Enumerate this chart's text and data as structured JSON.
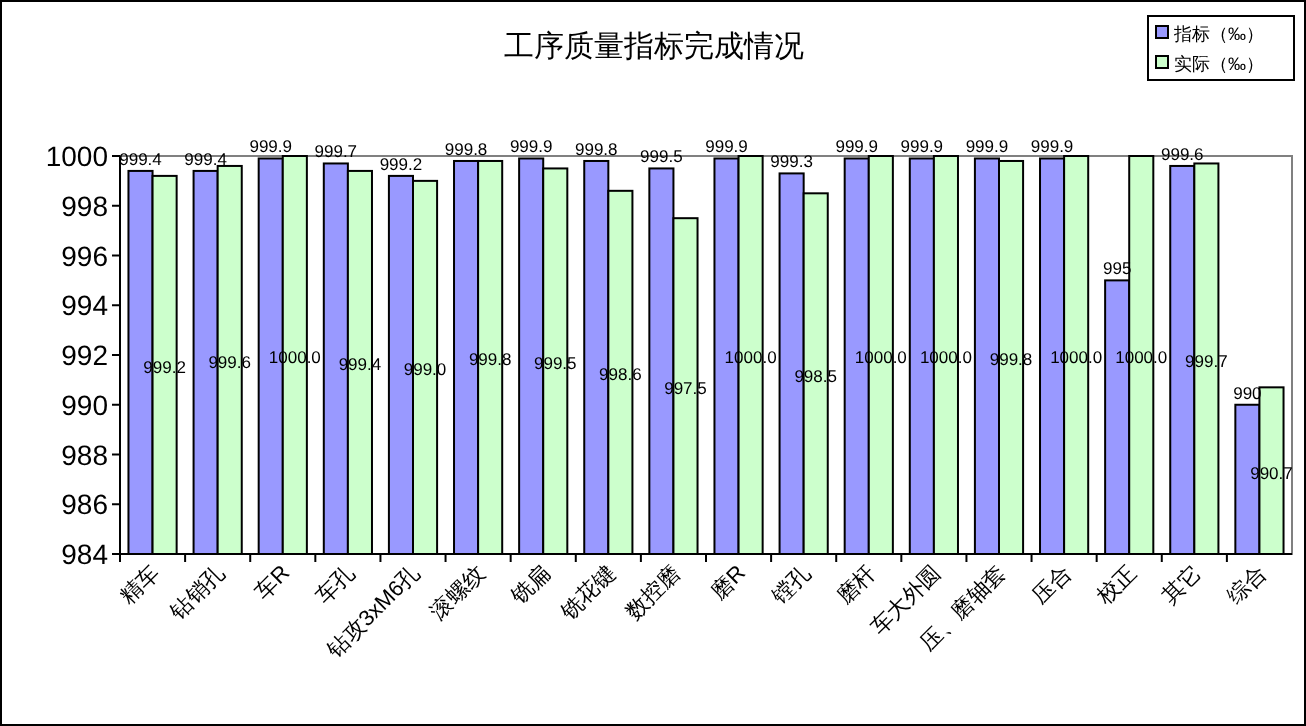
{
  "chart_data": {
    "type": "bar",
    "title": "工序质量指标完成情况",
    "categories": [
      "精车",
      "钻销孔",
      "车R",
      "车孔",
      "钻攻3xM6孔",
      "滚螺纹",
      "铣扁",
      "铣花键",
      "数控磨",
      "磨R",
      "镗孔",
      "磨杆",
      "车大外圆",
      "压、磨轴套",
      "压合",
      "校正",
      "其它",
      "综合"
    ],
    "series": [
      {
        "name": "指标（‰）",
        "color": "#9999ff",
        "values": [
          999.4,
          999.4,
          999.9,
          999.7,
          999.2,
          999.8,
          999.9,
          999.8,
          999.5,
          999.9,
          999.3,
          999.9,
          999.9,
          999.9,
          999.9,
          995,
          999.6,
          990
        ],
        "value_labels": [
          "999.4",
          "999.4",
          "999.9",
          "999.7",
          "999.2",
          "999.8",
          "999.9",
          "999.8",
          "999.5",
          "999.9",
          "999.3",
          "999.9",
          "999.9",
          "999.9",
          "999.9",
          "995",
          "999.6",
          "990"
        ]
      },
      {
        "name": "实际（‰）",
        "color": "#ccffcc",
        "values": [
          999.2,
          999.6,
          1000.0,
          999.4,
          999.0,
          999.8,
          999.5,
          998.6,
          997.5,
          1000.0,
          998.5,
          1000.0,
          1000.0,
          999.8,
          1000.0,
          1000.0,
          999.7,
          990.7
        ],
        "value_labels": [
          "999.2",
          "999.6",
          "1000.0",
          "999.4",
          "999.0",
          "999.8",
          "999.5",
          "998.6",
          "997.5",
          "1000.0",
          "998.5",
          "1000.0",
          "1000.0",
          "999.8",
          "1000.0",
          "1000.0",
          "999.7",
          "990.7"
        ]
      }
    ],
    "ylim": [
      984,
      1000
    ],
    "yticks": [
      984,
      986,
      988,
      990,
      992,
      994,
      996,
      998,
      1000
    ],
    "grid": false,
    "legend": "top right"
  }
}
